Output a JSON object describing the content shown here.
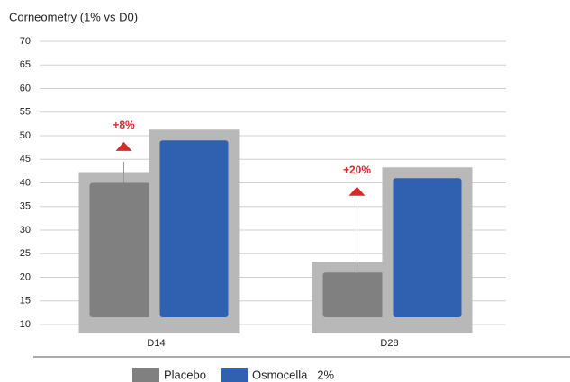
{
  "chart_data": {
    "type": "bar",
    "title": "Corneometry  (1%  vs  D0)",
    "categories": [
      "D14",
      "D28"
    ],
    "series": [
      {
        "name": "Placebo",
        "color": "#808080",
        "values": [
          40,
          21
        ],
        "errors": [
          4.5,
          14
        ]
      },
      {
        "name": "Osmocella   2%",
        "color": "#3060b0",
        "values": [
          49,
          41
        ]
      }
    ],
    "annotations": [
      "+8%",
      "+20%"
    ],
    "annotation_color": "#d42a2a",
    "ylim": [
      10,
      70
    ],
    "yticks": [
      10,
      15,
      20,
      25,
      30,
      35,
      40,
      45,
      50,
      55,
      60,
      65,
      70
    ],
    "grid": true
  }
}
